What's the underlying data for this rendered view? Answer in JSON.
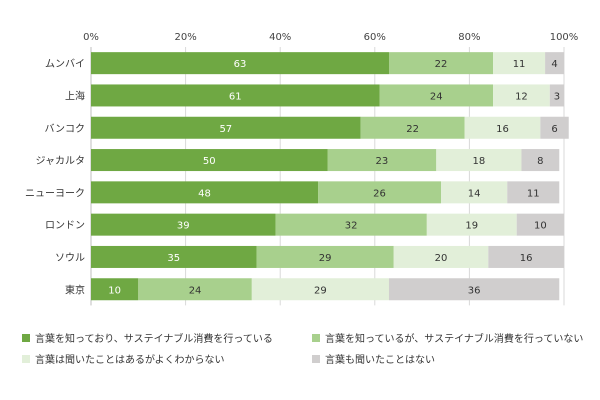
{
  "chart_data": {
    "type": "bar",
    "orientation": "horizontal",
    "stacked": true,
    "title": "",
    "xlabel": "",
    "ylabel": "",
    "xlim": [
      0,
      100
    ],
    "x_ticks": [
      "0%",
      "20%",
      "40%",
      "60%",
      "80%",
      "100%"
    ],
    "x_tick_values": [
      0,
      20,
      40,
      60,
      80,
      100
    ],
    "grid": true,
    "legend_position": "bottom",
    "categories": [
      "ムンバイ",
      "上海",
      "バンコク",
      "ジャカルタ",
      "ニューヨーク",
      "ロンドン",
      "ソウル",
      "東京"
    ],
    "series": [
      {
        "name": "言葉を知っており、サステイナブル消費を行っている",
        "color": "#6fa843",
        "label_color": "#ffffff",
        "values": [
          63,
          61,
          57,
          50,
          48,
          39,
          35,
          10
        ]
      },
      {
        "name": "言葉を知っているが、サステイナブル消費を行っていない",
        "color": "#a8d08d",
        "label_color": "#333333",
        "values": [
          22,
          24,
          22,
          23,
          26,
          32,
          29,
          24
        ]
      },
      {
        "name": "言葉は聞いたことはあるがよくわからない",
        "color": "#e2efd9",
        "label_color": "#333333",
        "values": [
          11,
          12,
          16,
          18,
          14,
          19,
          20,
          29
        ]
      },
      {
        "name": "言葉も聞いたことはない",
        "color": "#d0cece",
        "label_color": "#333333",
        "values": [
          4,
          3,
          6,
          8,
          11,
          10,
          16,
          36
        ]
      }
    ]
  }
}
